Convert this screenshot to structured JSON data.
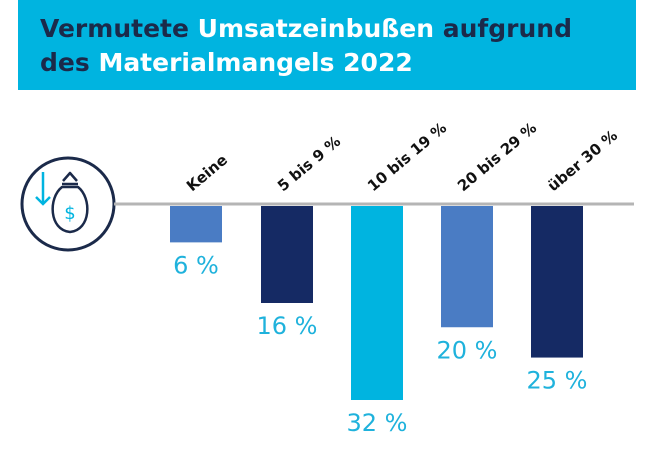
{
  "title": {
    "line1_dark": "Vermutete ",
    "line1_light": "Umsatzeinbußen",
    "line1_dark2": " aufgrund",
    "line2_dark": "des ",
    "line2_light": "Materialmangels 2022"
  },
  "icon": "money-bag-down-icon",
  "colors": {
    "banner": "#00b4e0",
    "title_dark": "#1b2a4a",
    "label_text": "#1fb2dc",
    "baseline": "#b5b5b5"
  },
  "chart_data": {
    "type": "bar",
    "orientation": "vertical-downward",
    "title": "Vermutete Umsatzeinbußen aufgrund des Materialmangels 2022",
    "categories": [
      "Keine",
      "5 bis 9 %",
      "10 bis 19 %",
      "20 bis 29 %",
      "über 30 %"
    ],
    "values": [
      6,
      16,
      32,
      20,
      25
    ],
    "data_labels": [
      "6 %",
      "16 %",
      "32 %",
      "20 %",
      "25 %"
    ],
    "bar_colors": [
      "#4a7cc4",
      "#152a64",
      "#00b4e0",
      "#4a7cc4",
      "#152a64"
    ],
    "unit": "%",
    "ylim": [
      0,
      32
    ],
    "grid": false,
    "legend": "none"
  }
}
